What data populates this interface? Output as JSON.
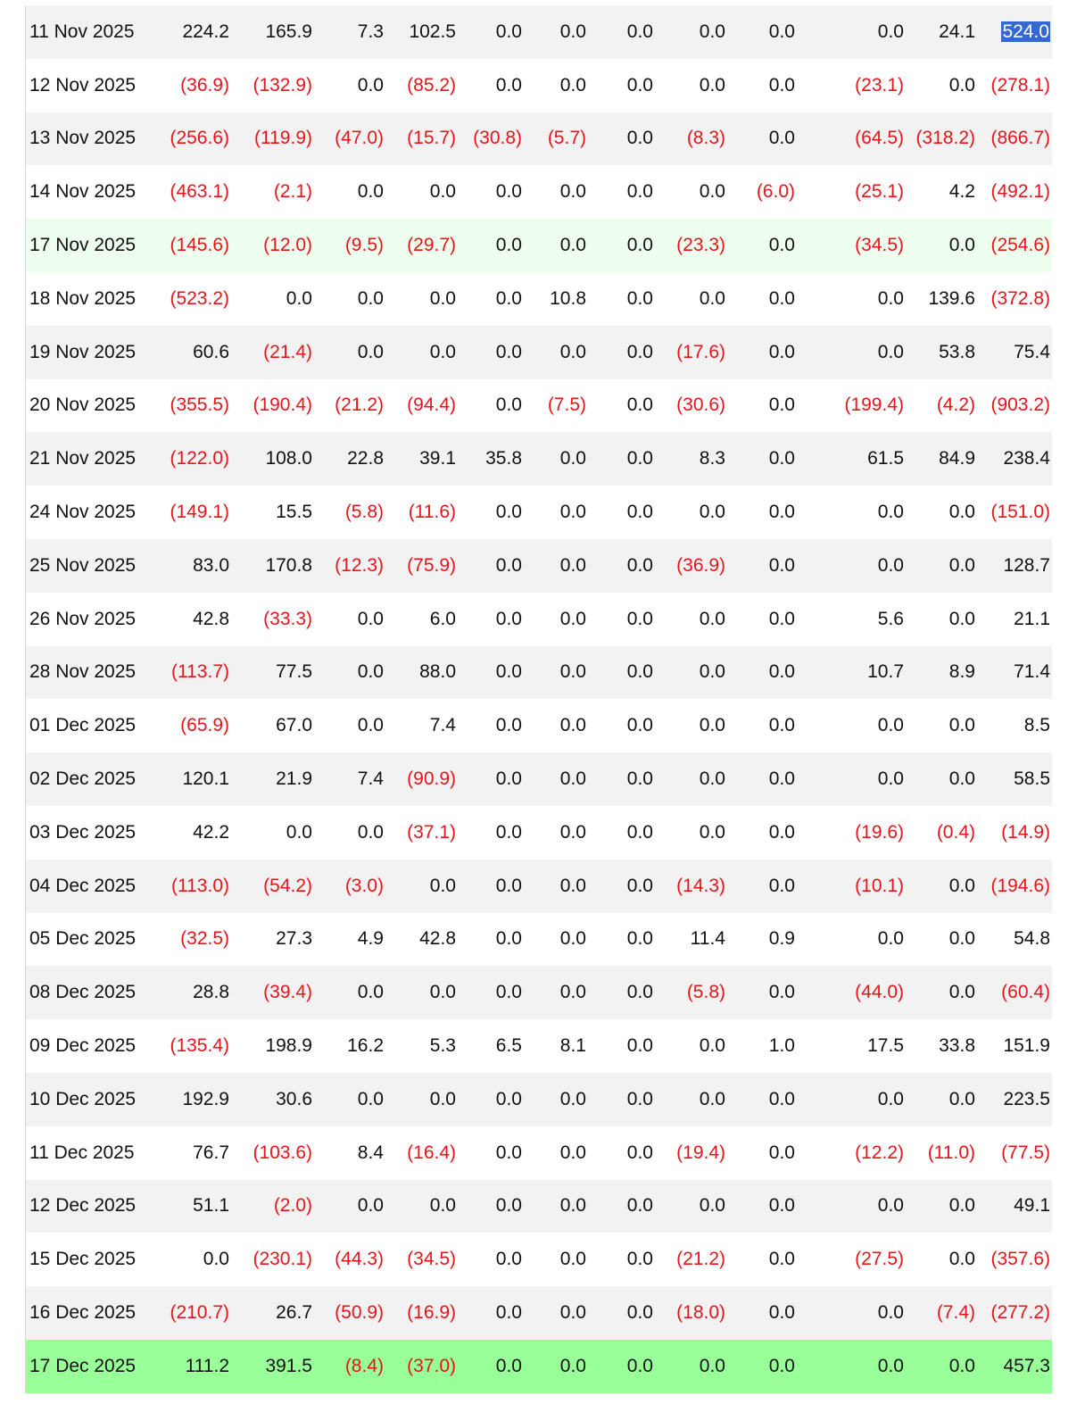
{
  "table": {
    "rows": [
      {
        "date": "11 Nov 2025",
        "values": [
          "224.2",
          "165.9",
          "7.3",
          "102.5",
          "0.0",
          "0.0",
          "0.0",
          "0.0",
          "0.0",
          "0.0",
          "24.1",
          "524.0"
        ],
        "highlight": "none",
        "selected_last": true
      },
      {
        "date": "12 Nov 2025",
        "values": [
          "(36.9)",
          "(132.9)",
          "0.0",
          "(85.2)",
          "0.0",
          "0.0",
          "0.0",
          "0.0",
          "0.0",
          "(23.1)",
          "0.0",
          "(278.1)"
        ],
        "highlight": "none"
      },
      {
        "date": "13 Nov 2025",
        "values": [
          "(256.6)",
          "(119.9)",
          "(47.0)",
          "(15.7)",
          "(30.8)",
          "(5.7)",
          "0.0",
          "(8.3)",
          "0.0",
          "(64.5)",
          "(318.2)",
          "(866.7)"
        ],
        "highlight": "none"
      },
      {
        "date": "14 Nov 2025",
        "values": [
          "(463.1)",
          "(2.1)",
          "0.0",
          "0.0",
          "0.0",
          "0.0",
          "0.0",
          "0.0",
          "(6.0)",
          "(25.1)",
          "4.2",
          "(492.1)"
        ],
        "highlight": "none"
      },
      {
        "date": "17 Nov 2025",
        "values": [
          "(145.6)",
          "(12.0)",
          "(9.5)",
          "(29.7)",
          "0.0",
          "0.0",
          "0.0",
          "(23.3)",
          "0.0",
          "(34.5)",
          "0.0",
          "(254.6)"
        ],
        "highlight": "light"
      },
      {
        "date": "18 Nov 2025",
        "values": [
          "(523.2)",
          "0.0",
          "0.0",
          "0.0",
          "0.0",
          "10.8",
          "0.0",
          "0.0",
          "0.0",
          "0.0",
          "139.6",
          "(372.8)"
        ],
        "highlight": "none"
      },
      {
        "date": "19 Nov 2025",
        "values": [
          "60.6",
          "(21.4)",
          "0.0",
          "0.0",
          "0.0",
          "0.0",
          "0.0",
          "(17.6)",
          "0.0",
          "0.0",
          "53.8",
          "75.4"
        ],
        "highlight": "none"
      },
      {
        "date": "20 Nov 2025",
        "values": [
          "(355.5)",
          "(190.4)",
          "(21.2)",
          "(94.4)",
          "0.0",
          "(7.5)",
          "0.0",
          "(30.6)",
          "0.0",
          "(199.4)",
          "(4.2)",
          "(903.2)"
        ],
        "highlight": "none"
      },
      {
        "date": "21 Nov 2025",
        "values": [
          "(122.0)",
          "108.0",
          "22.8",
          "39.1",
          "35.8",
          "0.0",
          "0.0",
          "8.3",
          "0.0",
          "61.5",
          "84.9",
          "238.4"
        ],
        "highlight": "none"
      },
      {
        "date": "24 Nov 2025",
        "values": [
          "(149.1)",
          "15.5",
          "(5.8)",
          "(11.6)",
          "0.0",
          "0.0",
          "0.0",
          "0.0",
          "0.0",
          "0.0",
          "0.0",
          "(151.0)"
        ],
        "highlight": "none"
      },
      {
        "date": "25 Nov 2025",
        "values": [
          "83.0",
          "170.8",
          "(12.3)",
          "(75.9)",
          "0.0",
          "0.0",
          "0.0",
          "(36.9)",
          "0.0",
          "0.0",
          "0.0",
          "128.7"
        ],
        "highlight": "none"
      },
      {
        "date": "26 Nov 2025",
        "values": [
          "42.8",
          "(33.3)",
          "0.0",
          "6.0",
          "0.0",
          "0.0",
          "0.0",
          "0.0",
          "0.0",
          "5.6",
          "0.0",
          "21.1"
        ],
        "highlight": "none"
      },
      {
        "date": "28 Nov 2025",
        "values": [
          "(113.7)",
          "77.5",
          "0.0",
          "88.0",
          "0.0",
          "0.0",
          "0.0",
          "0.0",
          "0.0",
          "10.7",
          "8.9",
          "71.4"
        ],
        "highlight": "none"
      },
      {
        "date": "01 Dec 2025",
        "values": [
          "(65.9)",
          "67.0",
          "0.0",
          "7.4",
          "0.0",
          "0.0",
          "0.0",
          "0.0",
          "0.0",
          "0.0",
          "0.0",
          "8.5"
        ],
        "highlight": "none"
      },
      {
        "date": "02 Dec 2025",
        "values": [
          "120.1",
          "21.9",
          "7.4",
          "(90.9)",
          "0.0",
          "0.0",
          "0.0",
          "0.0",
          "0.0",
          "0.0",
          "0.0",
          "58.5"
        ],
        "highlight": "none"
      },
      {
        "date": "03 Dec 2025",
        "values": [
          "42.2",
          "0.0",
          "0.0",
          "(37.1)",
          "0.0",
          "0.0",
          "0.0",
          "0.0",
          "0.0",
          "(19.6)",
          "(0.4)",
          "(14.9)"
        ],
        "highlight": "none"
      },
      {
        "date": "04 Dec 2025",
        "values": [
          "(113.0)",
          "(54.2)",
          "(3.0)",
          "0.0",
          "0.0",
          "0.0",
          "0.0",
          "(14.3)",
          "0.0",
          "(10.1)",
          "0.0",
          "(194.6)"
        ],
        "highlight": "none"
      },
      {
        "date": "05 Dec 2025",
        "values": [
          "(32.5)",
          "27.3",
          "4.9",
          "42.8",
          "0.0",
          "0.0",
          "0.0",
          "11.4",
          "0.9",
          "0.0",
          "0.0",
          "54.8"
        ],
        "highlight": "none"
      },
      {
        "date": "08 Dec 2025",
        "values": [
          "28.8",
          "(39.4)",
          "0.0",
          "0.0",
          "0.0",
          "0.0",
          "0.0",
          "(5.8)",
          "0.0",
          "(44.0)",
          "0.0",
          "(60.4)"
        ],
        "highlight": "none"
      },
      {
        "date": "09 Dec 2025",
        "values": [
          "(135.4)",
          "198.9",
          "16.2",
          "5.3",
          "6.5",
          "8.1",
          "0.0",
          "0.0",
          "1.0",
          "17.5",
          "33.8",
          "151.9"
        ],
        "highlight": "none"
      },
      {
        "date": "10 Dec 2025",
        "values": [
          "192.9",
          "30.6",
          "0.0",
          "0.0",
          "0.0",
          "0.0",
          "0.0",
          "0.0",
          "0.0",
          "0.0",
          "0.0",
          "223.5"
        ],
        "highlight": "none"
      },
      {
        "date": "11 Dec 2025",
        "values": [
          "76.7",
          "(103.6)",
          "8.4",
          "(16.4)",
          "0.0",
          "0.0",
          "0.0",
          "(19.4)",
          "0.0",
          "(12.2)",
          "(11.0)",
          "(77.5)"
        ],
        "highlight": "none"
      },
      {
        "date": "12 Dec 2025",
        "values": [
          "51.1",
          "(2.0)",
          "0.0",
          "0.0",
          "0.0",
          "0.0",
          "0.0",
          "0.0",
          "0.0",
          "0.0",
          "0.0",
          "49.1"
        ],
        "highlight": "none"
      },
      {
        "date": "15 Dec 2025",
        "values": [
          "0.0",
          "(230.1)",
          "(44.3)",
          "(34.5)",
          "0.0",
          "0.0",
          "0.0",
          "(21.2)",
          "0.0",
          "(27.5)",
          "0.0",
          "(357.6)"
        ],
        "highlight": "none"
      },
      {
        "date": "16 Dec 2025",
        "values": [
          "(210.7)",
          "26.7",
          "(50.9)",
          "(16.9)",
          "0.0",
          "0.0",
          "0.0",
          "(18.0)",
          "0.0",
          "0.0",
          "(7.4)",
          "(277.2)"
        ],
        "highlight": "none"
      },
      {
        "date": "17 Dec 2025",
        "values": [
          "111.2",
          "391.5",
          "(8.4)",
          "(37.0)",
          "0.0",
          "0.0",
          "0.0",
          "0.0",
          "0.0",
          "0.0",
          "0.0",
          "457.3"
        ],
        "highlight": "strong"
      }
    ]
  },
  "colors": {
    "negative": "#e8141a",
    "text": "#111111",
    "row_shade": "#f2f2f2",
    "highlight_light": "#efffef",
    "highlight_strong": "#99ff99",
    "selection": "#3469d1"
  }
}
